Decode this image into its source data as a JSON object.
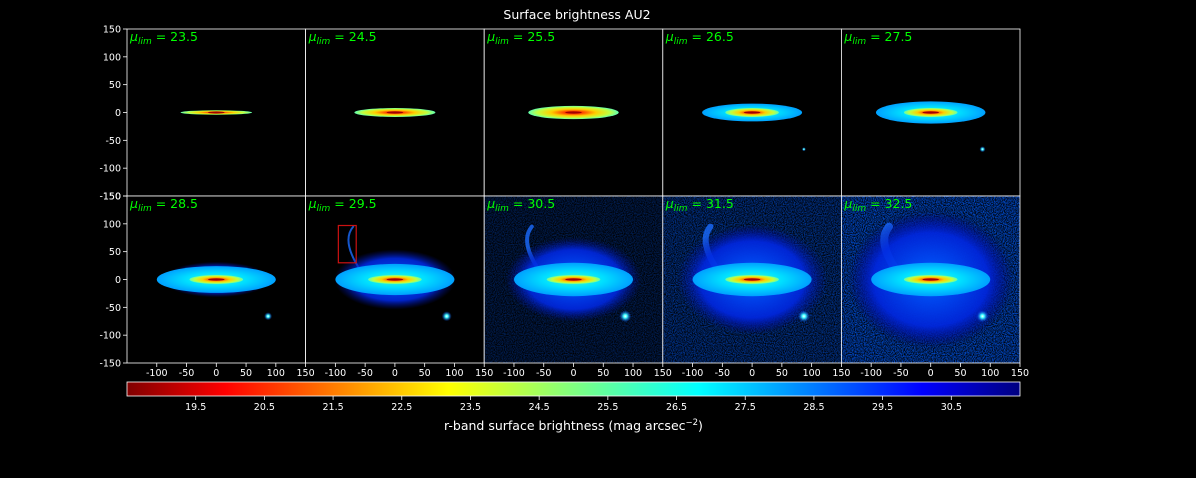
{
  "chart_data": {
    "type": "heatmap",
    "title": "Surface brightness AU2",
    "panel_label_prefix": "μ",
    "panel_label_sub": "lim",
    "panel_label_eq": " = ",
    "panels": [
      {
        "mu_lim": "23.5",
        "depth": 0
      },
      {
        "mu_lim": "24.5",
        "depth": 1
      },
      {
        "mu_lim": "25.5",
        "depth": 2
      },
      {
        "mu_lim": "26.5",
        "depth": 3
      },
      {
        "mu_lim": "27.5",
        "depth": 4
      },
      {
        "mu_lim": "28.5",
        "depth": 5
      },
      {
        "mu_lim": "29.5",
        "depth": 6,
        "highlight_box": {
          "x": [
            -95,
            -65
          ],
          "y": [
            30,
            97
          ]
        }
      },
      {
        "mu_lim": "30.5",
        "depth": 7
      },
      {
        "mu_lim": "31.5",
        "depth": 8
      },
      {
        "mu_lim": "32.5",
        "depth": 9
      }
    ],
    "xlim": [
      -150,
      150
    ],
    "ylim": [
      -150,
      150
    ],
    "xticks": [
      "-100",
      "-50",
      "0",
      "50",
      "100",
      "150"
    ],
    "yticks": [
      "150",
      "100",
      "50",
      "0",
      "-50",
      "-100",
      "-150"
    ],
    "colorbar": {
      "label": "r-band surface brightness (mag arcsec",
      "label_sup": "−2",
      "label_end": ")",
      "range": [
        18.5,
        31.5
      ],
      "ticks": [
        "19.5",
        "20.5",
        "21.5",
        "22.5",
        "23.5",
        "24.5",
        "25.5",
        "26.5",
        "27.5",
        "28.5",
        "29.5",
        "30.5"
      ],
      "colormap": "jet_r"
    },
    "colors": {
      "background": "#000000",
      "label_color": "#00ff00",
      "highlight_box": "#cc1111",
      "axis_color": "#ffffff"
    }
  }
}
